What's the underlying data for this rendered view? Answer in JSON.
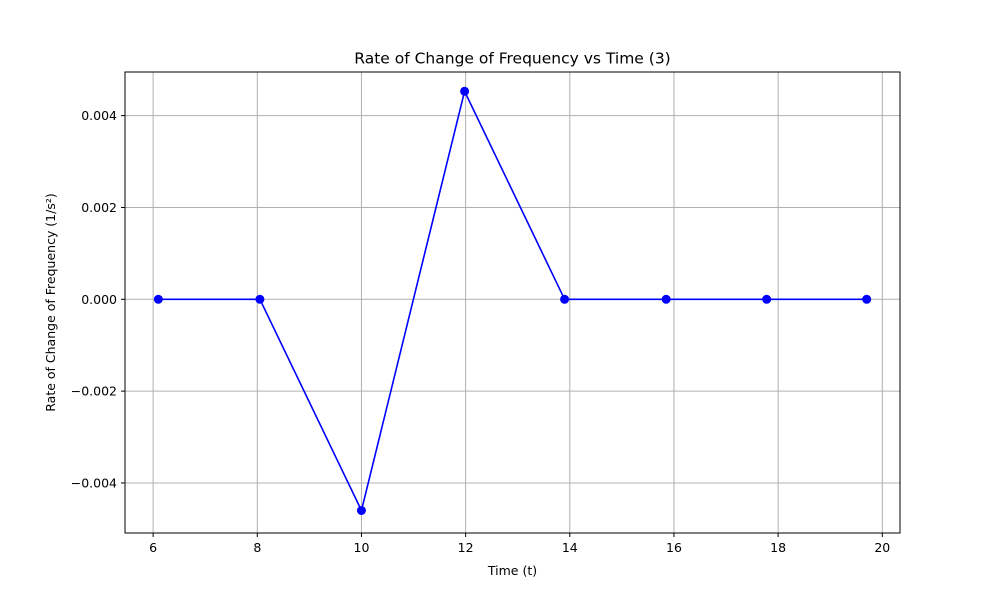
{
  "chart_data": {
    "type": "line",
    "title": "Rate of Change of Frequency vs Time (3)",
    "xlabel": "Time (t)",
    "ylabel": "Rate of Change of Frequency (1/s²)",
    "xlim": [
      5.46,
      20.34
    ],
    "ylim": [
      -0.00509,
      0.00495
    ],
    "grid": true,
    "x_ticks": [
      6,
      8,
      10,
      12,
      14,
      16,
      18,
      20
    ],
    "x_tick_labels": [
      "6",
      "8",
      "10",
      "12",
      "14",
      "16",
      "18",
      "20"
    ],
    "y_ticks": [
      -0.004,
      -0.002,
      0.0,
      0.002,
      0.004
    ],
    "y_tick_labels": [
      "−0.004",
      "−0.002",
      "0.000",
      "0.002",
      "0.004"
    ],
    "series": [
      {
        "color": "#0000ff",
        "marker": "circle",
        "x": [
          6.1,
          8.05,
          10.0,
          11.98,
          13.9,
          15.85,
          17.78,
          19.7
        ],
        "y": [
          0.0,
          0.0,
          -0.0046,
          0.00453,
          0.0,
          0.0,
          0.0,
          0.0
        ]
      }
    ]
  }
}
